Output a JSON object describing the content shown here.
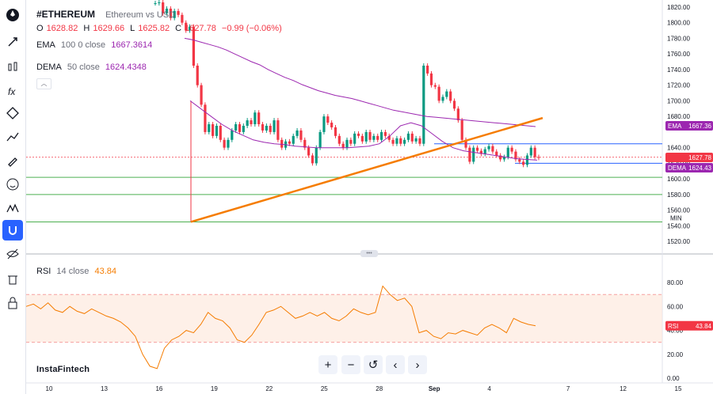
{
  "header": {
    "symbol": "#ETHEREUM",
    "description": "Ethereum vs USD",
    "o_label": "O",
    "o_value": "1628.82",
    "h_label": "H",
    "h_value": "1629.66",
    "l_label": "L",
    "l_value": "1625.82",
    "c_label": "C",
    "c_value": "1627.78",
    "change": "−0.99 (−0.06%)"
  },
  "indicators": {
    "ema_name": "EMA",
    "ema_params": "100 0 close",
    "ema_value": "1667.3614",
    "dema_name": "DEMA",
    "dema_params": "50 close",
    "dema_value": "1624.4348",
    "rsi_name": "RSI",
    "rsi_params": "14 close",
    "rsi_value": "43.84"
  },
  "price_axis": {
    "ticks": [
      "1820.00",
      "1800.00",
      "1780.00",
      "1760.00",
      "1740.00",
      "1720.00",
      "1700.00",
      "1680.00",
      "1640.00",
      "1620.00",
      "1600.00",
      "1580.00",
      "1560.00",
      "1540.00",
      "1520.00"
    ],
    "ema_tag": "EMA",
    "ema_tag_value": "1667.36",
    "price_tag_value": "1627.78",
    "dema_tag": "DEMA",
    "dema_tag_value": "1624.43",
    "min_marker": "MIN"
  },
  "rsi_axis": {
    "ticks": [
      "80.00",
      "60.00",
      "40.00",
      "20.00",
      "0.00"
    ],
    "tag": "RSI",
    "tag_value": "43.84"
  },
  "time_axis": {
    "ticks": [
      "10",
      "13",
      "16",
      "19",
      "22",
      "25",
      "28",
      "Sep",
      "4",
      "7",
      "12",
      "15"
    ]
  },
  "logo_text": "InstaFintech",
  "toolbar": {
    "tools": [
      "logo-icon",
      "crosshair-icon",
      "candles-icon",
      "fx-icon",
      "shapes-icon",
      "pattern-icon",
      "brush-icon",
      "emoji-icon",
      "ruler-icon",
      "magnet-icon",
      "eye-icon",
      "delete-icon",
      "lock-icon"
    ]
  },
  "nav_buttons": {
    "zoom_in": "+",
    "zoom_out": "−",
    "reset": "↺",
    "scroll_left": "‹",
    "scroll_right": "›"
  },
  "colors": {
    "up": "#089981",
    "down": "#f23645",
    "ema": "#9c27b0",
    "dema": "#9c27b0",
    "trendline": "#f57c00",
    "horizontal": "#4caf50",
    "resistance": "#2962ff",
    "rsi": "#f57c00"
  },
  "chart_data": [
    {
      "type": "candlestick",
      "title": "#ETHEREUM Ethereum vs USD",
      "xlabel": "",
      "ylabel": "",
      "ylim": [
        1510,
        1825
      ],
      "x_ticks": [
        "10",
        "13",
        "16",
        "19",
        "22",
        "25",
        "28",
        "Sep",
        "4",
        "7",
        "12",
        "15"
      ],
      "y_ticks": [
        1520,
        1540,
        1560,
        1580,
        1600,
        1620,
        1640,
        1680,
        1700,
        1720,
        1740,
        1760,
        1780,
        1800,
        1820
      ],
      "closes": [
        1825,
        1826,
        1812,
        1818,
        1806,
        1815,
        1810,
        1800,
        1790,
        1795,
        1745,
        1720,
        1695,
        1660,
        1670,
        1655,
        1668,
        1650,
        1640,
        1650,
        1662,
        1670,
        1660,
        1668,
        1675,
        1670,
        1685,
        1670,
        1662,
        1668,
        1660,
        1675,
        1650,
        1640,
        1648,
        1645,
        1655,
        1662,
        1650,
        1640,
        1630,
        1620,
        1640,
        1660,
        1680,
        1672,
        1666,
        1655,
        1645,
        1640,
        1650,
        1645,
        1658,
        1655,
        1648,
        1660,
        1650,
        1655,
        1650,
        1660,
        1655,
        1650,
        1645,
        1652,
        1645,
        1650,
        1658,
        1648,
        1652,
        1645,
        1745,
        1735,
        1720,
        1718,
        1700,
        1705,
        1712,
        1700,
        1690,
        1675,
        1650,
        1640,
        1622,
        1640,
        1636,
        1632,
        1638,
        1642,
        1635,
        1630,
        1625,
        1628,
        1640,
        1635,
        1625,
        1622,
        1618,
        1630,
        1640,
        1628,
        1627
      ],
      "ema": [
        1780,
        1778,
        1775,
        1772,
        1769,
        1765,
        1760,
        1755,
        1750,
        1746,
        1740,
        1735,
        1730,
        1726,
        1721,
        1717,
        1713,
        1710,
        1707,
        1705,
        1703,
        1700,
        1697,
        1694,
        1691,
        1688,
        1686,
        1684,
        1682,
        1680,
        1679,
        1678,
        1677,
        1676,
        1675,
        1674,
        1673,
        1672,
        1671,
        1670,
        1669,
        1668,
        1667
      ],
      "dema": [
        1700,
        1690,
        1680,
        1670,
        1662,
        1656,
        1650,
        1647,
        1645,
        1644,
        1642,
        1641,
        1640,
        1640,
        1640,
        1640,
        1641,
        1642,
        1645,
        1655,
        1668,
        1672,
        1668,
        1658,
        1648,
        1640,
        1636,
        1634,
        1632,
        1630,
        1628,
        1626,
        1625,
        1624
      ],
      "trendline": {
        "from": {
          "x": "18",
          "y": 1545
        },
        "to": {
          "x": "6 Sep",
          "y": 1678
        }
      },
      "horizontal_levels": [
        1645,
        1602,
        1580,
        1545
      ],
      "resistance_level": 1645,
      "current_price": 1627.78
    },
    {
      "type": "line",
      "title": "RSI 14 close",
      "xlabel": "",
      "ylabel": "",
      "ylim": [
        0,
        90
      ],
      "bands": [
        70,
        30
      ],
      "values": [
        60,
        62,
        58,
        63,
        57,
        55,
        60,
        56,
        54,
        58,
        55,
        52,
        50,
        47,
        42,
        35,
        20,
        10,
        8,
        25,
        32,
        35,
        40,
        38,
        45,
        55,
        50,
        48,
        42,
        32,
        30,
        36,
        45,
        55,
        57,
        60,
        55,
        50,
        52,
        55,
        52,
        55,
        50,
        48,
        52,
        58,
        55,
        53,
        55,
        77,
        70,
        65,
        67,
        60,
        38,
        40,
        35,
        33,
        38,
        37,
        40,
        38,
        36,
        42,
        45,
        42,
        38,
        50,
        47,
        45,
        43.84
      ]
    }
  ]
}
